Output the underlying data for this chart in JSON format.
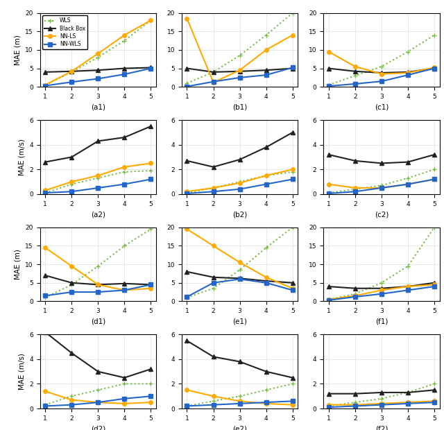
{
  "x": [
    1,
    2,
    3,
    4,
    5
  ],
  "plots": {
    "a1": {
      "WLS": [
        0.5,
        4.0,
        8.0,
        12.5,
        18.0
      ],
      "BlackBox": [
        4.0,
        4.2,
        4.5,
        5.0,
        5.2
      ],
      "NN-LS": [
        0.5,
        4.2,
        9.0,
        14.0,
        18.0
      ],
      "NN-WLS": [
        0.3,
        1.3,
        2.2,
        3.4,
        5.0
      ],
      "ylim": [
        0,
        20
      ],
      "yticks": [
        0,
        5,
        10,
        15,
        20
      ],
      "ylabel": "MAE (m)",
      "xlabel": "(a1)"
    },
    "b1": {
      "WLS": [
        1.0,
        4.0,
        8.5,
        14.0,
        20.0
      ],
      "BlackBox": [
        5.0,
        4.0,
        4.2,
        4.5,
        5.0
      ],
      "NN-LS": [
        18.5,
        1.2,
        4.5,
        10.0,
        14.0
      ],
      "NN-WLS": [
        0.1,
        1.4,
        2.5,
        3.2,
        5.2
      ],
      "ylim": [
        0,
        20
      ],
      "yticks": [
        0,
        5,
        10,
        15,
        20
      ],
      "ylabel": "",
      "xlabel": "(b1)"
    },
    "c1": {
      "WLS": [
        0.5,
        3.0,
        5.5,
        9.5,
        14.0
      ],
      "BlackBox": [
        5.0,
        4.2,
        3.8,
        4.0,
        5.0
      ],
      "NN-LS": [
        9.5,
        5.5,
        3.5,
        3.8,
        5.2
      ],
      "NN-WLS": [
        0.2,
        0.8,
        1.5,
        3.2,
        5.0
      ],
      "ylim": [
        0,
        20
      ],
      "yticks": [
        0,
        5,
        10,
        15,
        20
      ],
      "ylabel": "",
      "xlabel": "(c1)"
    },
    "a2": {
      "WLS": [
        0.1,
        0.8,
        1.3,
        1.8,
        1.9
      ],
      "BlackBox": [
        2.6,
        3.0,
        4.3,
        4.6,
        5.5
      ],
      "NN-LS": [
        0.3,
        1.0,
        1.5,
        2.2,
        2.5
      ],
      "NN-WLS": [
        0.1,
        0.2,
        0.5,
        0.8,
        1.2
      ],
      "ylim": [
        0,
        6
      ],
      "yticks": [
        0,
        2,
        4,
        6
      ],
      "ylabel": "MAE (m/s)",
      "xlabel": "(a2)"
    },
    "b2": {
      "WLS": [
        0.1,
        0.5,
        1.0,
        1.5,
        1.8
      ],
      "BlackBox": [
        2.7,
        2.2,
        2.8,
        3.8,
        5.0
      ],
      "NN-LS": [
        0.2,
        0.5,
        0.9,
        1.5,
        2.0
      ],
      "NN-WLS": [
        0.05,
        0.2,
        0.4,
        0.8,
        1.2
      ],
      "ylim": [
        0,
        6
      ],
      "yticks": [
        0,
        2,
        4,
        6
      ],
      "ylabel": "",
      "xlabel": "(b2)"
    },
    "c2": {
      "WLS": [
        0.1,
        0.4,
        0.7,
        1.3,
        2.0
      ],
      "BlackBox": [
        3.2,
        2.7,
        2.5,
        2.6,
        3.2
      ],
      "NN-LS": [
        0.8,
        0.5,
        0.5,
        0.8,
        1.2
      ],
      "NN-WLS": [
        0.05,
        0.2,
        0.5,
        0.8,
        1.2
      ],
      "ylim": [
        0,
        6
      ],
      "yticks": [
        0,
        2,
        4,
        6
      ],
      "ylabel": "",
      "xlabel": "(c2)"
    },
    "d1": {
      "WLS": [
        1.0,
        4.5,
        9.5,
        15.0,
        19.5
      ],
      "BlackBox": [
        7.0,
        5.0,
        4.5,
        4.8,
        4.5
      ],
      "NN-LS": [
        14.5,
        9.5,
        4.5,
        3.0,
        3.5
      ],
      "NN-WLS": [
        1.5,
        2.5,
        2.5,
        3.0,
        4.5
      ],
      "ylim": [
        0,
        20
      ],
      "yticks": [
        0,
        5,
        10,
        15,
        20
      ],
      "ylabel": "MAE (m)",
      "xlabel": "(d1)"
    },
    "e1": {
      "WLS": [
        1.0,
        3.5,
        8.5,
        14.5,
        20.0
      ],
      "BlackBox": [
        8.0,
        6.5,
        6.2,
        5.5,
        5.0
      ],
      "NN-LS": [
        19.5,
        15.0,
        10.5,
        6.5,
        3.5
      ],
      "NN-WLS": [
        1.2,
        5.0,
        6.0,
        5.0,
        3.0
      ],
      "ylim": [
        0,
        20
      ],
      "yticks": [
        0,
        5,
        10,
        15,
        20
      ],
      "ylabel": "",
      "xlabel": "(e1)"
    },
    "f1": {
      "WLS": [
        0.5,
        2.0,
        5.0,
        9.5,
        20.0
      ],
      "BlackBox": [
        4.0,
        3.5,
        3.5,
        4.0,
        5.0
      ],
      "NN-LS": [
        0.5,
        1.5,
        3.0,
        4.0,
        4.5
      ],
      "NN-WLS": [
        0.3,
        1.2,
        2.0,
        3.0,
        4.0
      ],
      "ylim": [
        0,
        20
      ],
      "yticks": [
        0,
        5,
        10,
        15,
        20
      ],
      "ylabel": "",
      "xlabel": "(f1)"
    },
    "d2": {
      "WLS": [
        0.3,
        1.0,
        1.5,
        2.0,
        2.0
      ],
      "BlackBox": [
        6.2,
        4.5,
        3.0,
        2.5,
        3.2
      ],
      "NN-LS": [
        1.4,
        0.7,
        0.5,
        0.4,
        0.5
      ],
      "NN-WLS": [
        0.2,
        0.3,
        0.5,
        0.8,
        1.0
      ],
      "ylim": [
        0,
        6
      ],
      "yticks": [
        0,
        2,
        4,
        6
      ],
      "ylabel": "MAE (m/s)",
      "xlabel": "(d2)"
    },
    "e2": {
      "WLS": [
        0.2,
        0.6,
        1.0,
        1.5,
        2.0
      ],
      "BlackBox": [
        5.5,
        4.2,
        3.8,
        3.0,
        2.5
      ],
      "NN-LS": [
        1.5,
        1.0,
        0.6,
        0.4,
        0.3
      ],
      "NN-WLS": [
        0.2,
        0.3,
        0.4,
        0.5,
        0.6
      ],
      "ylim": [
        0,
        6
      ],
      "yticks": [
        0,
        2,
        4,
        6
      ],
      "ylabel": "",
      "xlabel": "(e2)"
    },
    "f2": {
      "WLS": [
        0.2,
        0.5,
        0.8,
        1.3,
        2.0
      ],
      "BlackBox": [
        1.2,
        1.2,
        1.3,
        1.3,
        1.5
      ],
      "NN-LS": [
        0.3,
        0.3,
        0.4,
        0.5,
        0.6
      ],
      "NN-WLS": [
        0.1,
        0.2,
        0.3,
        0.4,
        0.5
      ],
      "ylim": [
        0,
        6
      ],
      "yticks": [
        0,
        2,
        4,
        6
      ],
      "ylabel": "",
      "xlabel": "(f2)"
    }
  },
  "series_styles": {
    "WLS": {
      "color": "#77bb44",
      "linestyle": ":",
      "marker": "+",
      "linewidth": 1.5
    },
    "BlackBox": {
      "color": "#222222",
      "linestyle": "-",
      "marker": "^",
      "linewidth": 1.5
    },
    "NN-LS": {
      "color": "#ffaa00",
      "linestyle": "-",
      "marker": "o",
      "linewidth": 1.5
    },
    "NN-WLS": {
      "color": "#2266cc",
      "linestyle": "-",
      "marker": "s",
      "linewidth": 1.5
    }
  },
  "legend_labels": [
    "WLS",
    "Black Box",
    "NN-LS",
    "NN-WLS"
  ],
  "subplot_order": [
    [
      "a1",
      "b1",
      "c1"
    ],
    [
      "a2",
      "b2",
      "c2"
    ],
    [
      "d1",
      "e1",
      "f1"
    ],
    [
      "d2",
      "e2",
      "f2"
    ]
  ]
}
